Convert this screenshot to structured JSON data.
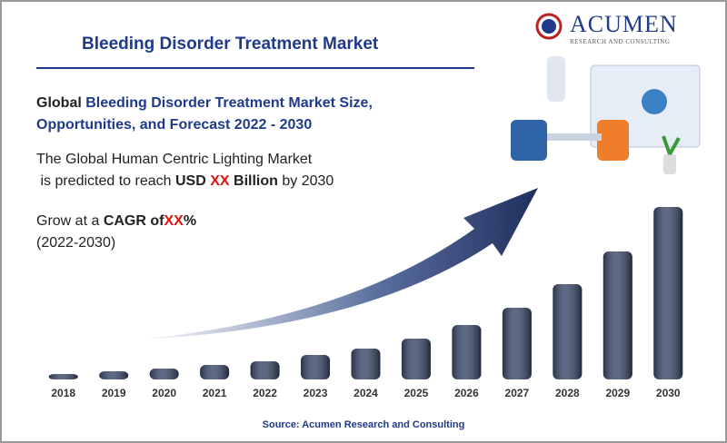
{
  "header": {
    "title": "Bleeding Disorder Treatment Market",
    "logo_name": "ACUMEN",
    "logo_tagline": "RESEARCH AND CONSULTING"
  },
  "headline": {
    "lead": "Global",
    "line1": "Bleeding Disorder Treatment Market Size,",
    "line2": "Opportunities, and Forecast 2022 - 2030"
  },
  "statement": {
    "line1": "The Global Human Centric Lighting Market",
    "a": "is predicted to reach",
    "b": "USD",
    "c": "XX",
    "d": "Billion",
    "e": "by 2030"
  },
  "cagr": {
    "a": "Grow at a",
    "b": "CAGR of",
    "c": "XX",
    "d": "%",
    "e": "(2022-2030)"
  },
  "chart_data": {
    "type": "bar",
    "categories": [
      "2018",
      "2019",
      "2020",
      "2021",
      "2022",
      "2023",
      "2024",
      "2025",
      "2026",
      "2027",
      "2028",
      "2029",
      "2030"
    ],
    "values": [
      6,
      9,
      12,
      16,
      20,
      27,
      34,
      45,
      60,
      79,
      105,
      141,
      190
    ],
    "color": "#3b4a6b",
    "ylim": [
      0,
      200
    ]
  },
  "source": "Source: Acumen Research and Consulting"
}
